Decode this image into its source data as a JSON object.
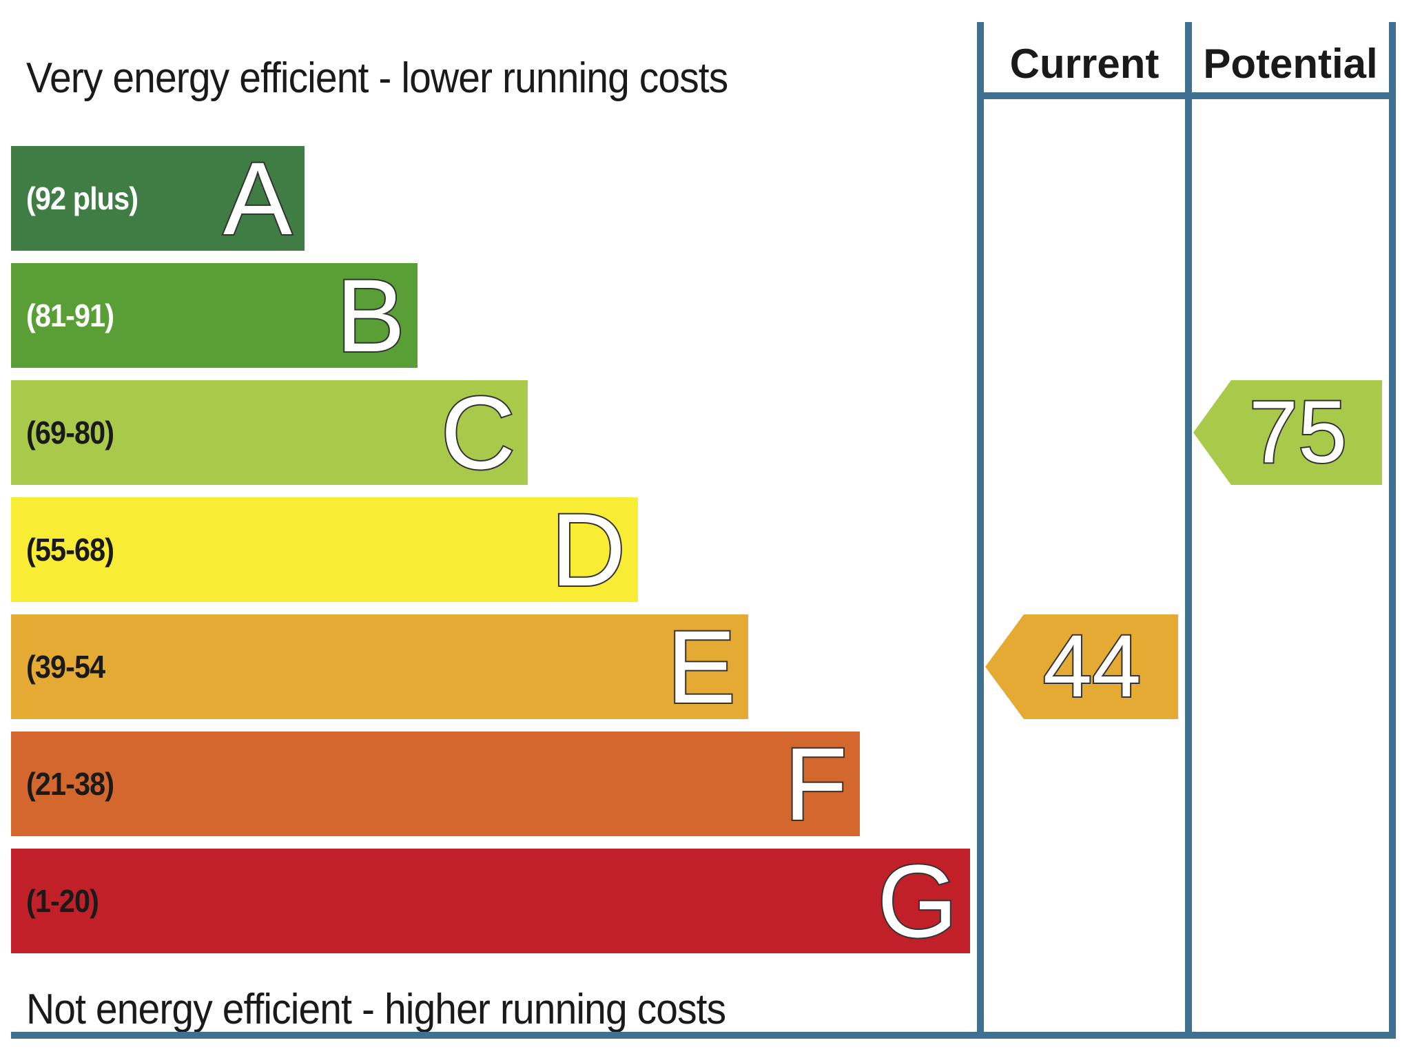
{
  "chart_data": {
    "type": "bar",
    "top_caption": "Very energy efficient - lower running costs",
    "bottom_caption": "Not energy efficient - higher running costs",
    "bands": [
      {
        "letter": "A",
        "range": "(92 plus)",
        "color": "#3f7d45",
        "text_color": "#ffffff"
      },
      {
        "letter": "B",
        "range": "(81-91)",
        "color": "#5a9e36",
        "text_color": "#ffffff"
      },
      {
        "letter": "C",
        "range": "(69-80)",
        "color": "#a8c94a",
        "text_color": "#1a1a1a"
      },
      {
        "letter": "D",
        "range": "(55-68)",
        "color": "#f9ec34",
        "text_color": "#1a1a1a"
      },
      {
        "letter": "E",
        "range": "(39-54",
        "color": "#e5aa33",
        "text_color": "#1a1a1a"
      },
      {
        "letter": "F",
        "range": "(21-38)",
        "color": "#d3672d",
        "text_color": "#1a1a1a"
      },
      {
        "letter": "G",
        "range": "(1-20)",
        "color": "#c12028",
        "text_color": "#1a1a1a"
      }
    ],
    "columns": [
      {
        "header": "Current",
        "value": 44,
        "band": "E",
        "color": "#e5aa33"
      },
      {
        "header": "Potential",
        "value": 75,
        "band": "C",
        "color": "#a8c94a"
      }
    ]
  }
}
